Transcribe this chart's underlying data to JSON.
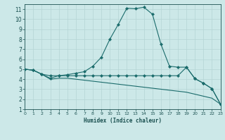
{
  "background_color": "#cce8e8",
  "grid_color": "#b5d5d5",
  "line_color": "#1a6b6b",
  "xlabel": "Humidex (Indice chaleur)",
  "xlim": [
    0,
    23
  ],
  "ylim": [
    1,
    11.5
  ],
  "xticks": [
    0,
    1,
    2,
    3,
    4,
    5,
    6,
    7,
    8,
    9,
    10,
    11,
    12,
    13,
    14,
    15,
    16,
    17,
    18,
    19,
    20,
    21,
    22,
    23
  ],
  "yticks": [
    1,
    2,
    3,
    4,
    5,
    6,
    7,
    8,
    9,
    10,
    11
  ],
  "curve_main_x": [
    0,
    1,
    2,
    3,
    4,
    5,
    6,
    7,
    8,
    9,
    10,
    11,
    12,
    13,
    14,
    15,
    16,
    17,
    18,
    19,
    20,
    21,
    22,
    23
  ],
  "curve_main_y": [
    5.0,
    4.9,
    4.5,
    4.1,
    4.35,
    4.45,
    4.6,
    4.75,
    5.3,
    6.2,
    8.0,
    9.5,
    11.1,
    11.05,
    11.2,
    10.5,
    7.5,
    5.3,
    5.2,
    5.2,
    4.05,
    3.6,
    3.05,
    1.5
  ],
  "curve_mid_x": [
    0,
    1,
    2,
    3,
    4,
    5,
    6,
    7,
    8,
    9,
    10,
    11,
    12,
    13,
    14,
    15,
    16,
    17,
    18,
    19,
    20,
    21,
    22,
    23
  ],
  "curve_mid_y": [
    5.0,
    4.9,
    4.5,
    4.35,
    4.35,
    4.35,
    4.35,
    4.35,
    4.35,
    4.35,
    4.35,
    4.35,
    4.35,
    4.35,
    4.35,
    4.35,
    4.35,
    4.35,
    4.35,
    5.2,
    4.05,
    3.6,
    3.05,
    1.5
  ],
  "curve_low_x": [
    0,
    1,
    2,
    3,
    4,
    5,
    6,
    7,
    8,
    9,
    10,
    11,
    12,
    13,
    14,
    15,
    16,
    17,
    18,
    19,
    20,
    21,
    22,
    23
  ],
  "curve_low_y": [
    5.0,
    4.9,
    4.5,
    4.0,
    4.1,
    4.1,
    4.0,
    3.9,
    3.8,
    3.7,
    3.6,
    3.5,
    3.4,
    3.3,
    3.2,
    3.1,
    3.0,
    2.9,
    2.8,
    2.7,
    2.5,
    2.3,
    2.1,
    1.5
  ],
  "marker_size": 2.2,
  "lw": 0.8
}
